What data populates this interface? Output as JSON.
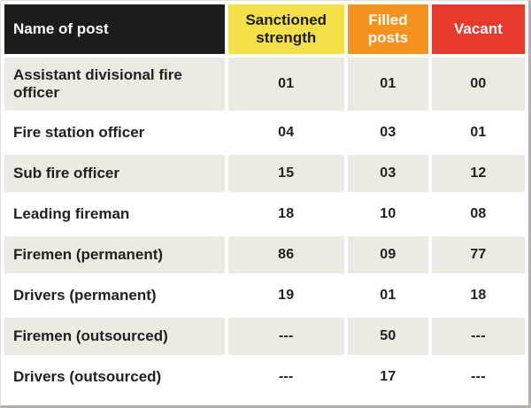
{
  "table": {
    "headers": [
      {
        "label": "Name of post"
      },
      {
        "label": "Sanctioned strength"
      },
      {
        "label": "Filled posts"
      },
      {
        "label": "Vacant"
      }
    ],
    "rows": [
      {
        "name": "Assistant divisional fire officer",
        "sanctioned": "01",
        "filled": "01",
        "vacant": "00"
      },
      {
        "name": "Fire station officer",
        "sanctioned": "04",
        "filled": "03",
        "vacant": "01"
      },
      {
        "name": "Sub fire officer",
        "sanctioned": "15",
        "filled": "03",
        "vacant": "12"
      },
      {
        "name": "Leading fireman",
        "sanctioned": "18",
        "filled": "10",
        "vacant": "08"
      },
      {
        "name": "Firemen (permanent)",
        "sanctioned": "86",
        "filled": "09",
        "vacant": "77"
      },
      {
        "name": "Drivers (permanent)",
        "sanctioned": "19",
        "filled": "01",
        "vacant": "18"
      },
      {
        "name": "Firemen (outsourced)",
        "sanctioned": "---",
        "filled": "50",
        "vacant": "---"
      },
      {
        "name": "Drivers (outsourced)",
        "sanctioned": "---",
        "filled": "17",
        "vacant": "---"
      }
    ]
  },
  "colors": {
    "header_name_bg": "#1d1c1a",
    "header_sanctioned_bg": "#f4e04b",
    "header_filled_bg": "#f6921e",
    "header_vacant_bg": "#e63a2e",
    "row_alt_bg": "#eceae2"
  },
  "chart_data": {
    "type": "table",
    "columns": [
      "Name of post",
      "Sanctioned strength",
      "Filled posts",
      "Vacant"
    ],
    "rows": [
      [
        "Assistant divisional fire officer",
        "01",
        "01",
        "00"
      ],
      [
        "Fire station officer",
        "04",
        "03",
        "01"
      ],
      [
        "Sub fire officer",
        "15",
        "03",
        "12"
      ],
      [
        "Leading fireman",
        "18",
        "10",
        "08"
      ],
      [
        "Firemen (permanent)",
        "86",
        "09",
        "77"
      ],
      [
        "Drivers (permanent)",
        "19",
        "01",
        "18"
      ],
      [
        "Firemen (outsourced)",
        "---",
        "50",
        "---"
      ],
      [
        "Drivers (outsourced)",
        "---",
        "17",
        "---"
      ]
    ]
  }
}
